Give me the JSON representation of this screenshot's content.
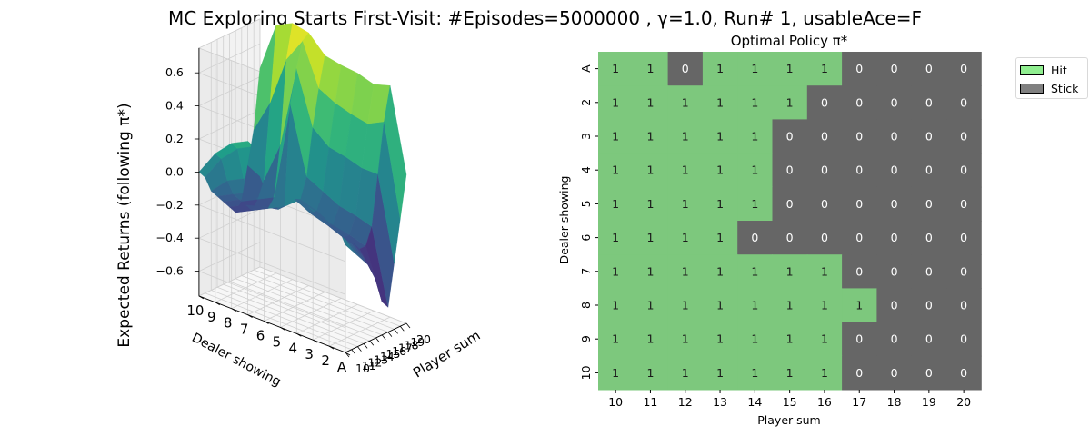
{
  "figure_title": "MC Exploring Starts First-Visit: #Episodes=5000000 , γ=1.0, Run# 1, usableAce=F",
  "chart_data": [
    {
      "type": "surface3d",
      "title": "",
      "xlabel": "Player sum",
      "ylabel": "Dealer showing",
      "zlabel": "Expected Returns (following π*)",
      "x_ticks": [
        "10",
        "11",
        "12",
        "13",
        "14",
        "15",
        "16",
        "17",
        "18",
        "19",
        "20"
      ],
      "y_ticks": [
        "10",
        "9",
        "8",
        "7",
        "6",
        "5",
        "4",
        "3",
        "2",
        "A"
      ],
      "z_ticks": [
        "−0.6",
        "−0.4",
        "−0.2",
        "0.0",
        "0.2",
        "0.4",
        "0.6"
      ],
      "zlim": [
        -0.75,
        0.75
      ],
      "colormap": "viridis",
      "player_sums": [
        10,
        11,
        12,
        13,
        14,
        15,
        16,
        17,
        18,
        19,
        20
      ],
      "dealer_rows": [
        "A",
        "2",
        "3",
        "4",
        "5",
        "6",
        "7",
        "8",
        "9",
        "10"
      ],
      "values": [
        [
          -0.1,
          -0.15,
          -0.2,
          -0.25,
          -0.3,
          -0.4,
          -0.55,
          -0.6,
          -0.35,
          -0.1,
          0.15
        ],
        [
          0.1,
          0.05,
          -0.1,
          -0.15,
          -0.2,
          -0.25,
          -0.25,
          -0.15,
          0.15,
          0.45,
          0.65
        ],
        [
          0.12,
          0.07,
          -0.05,
          -0.1,
          -0.15,
          -0.22,
          -0.22,
          -0.12,
          0.15,
          0.4,
          0.62
        ],
        [
          0.15,
          0.1,
          -0.02,
          -0.08,
          -0.12,
          -0.18,
          -0.2,
          -0.1,
          0.18,
          0.42,
          0.65
        ],
        [
          0.18,
          0.12,
          0.0,
          -0.05,
          -0.08,
          -0.15,
          -0.15,
          -0.05,
          0.2,
          0.45,
          0.66
        ],
        [
          0.2,
          0.15,
          0.05,
          0.0,
          -0.05,
          -0.1,
          -0.12,
          0.0,
          0.28,
          0.5,
          0.68
        ],
        [
          0.3,
          0.25,
          0.05,
          -0.05,
          -0.1,
          -0.2,
          -0.2,
          0.4,
          0.6,
          0.75,
          0.78
        ],
        [
          0.25,
          0.2,
          0.0,
          -0.1,
          -0.15,
          -0.22,
          -0.25,
          -0.2,
          0.1,
          0.6,
          0.8
        ],
        [
          0.15,
          0.1,
          -0.05,
          -0.15,
          -0.2,
          -0.25,
          -0.3,
          -0.25,
          -0.15,
          0.3,
          0.75
        ],
        [
          0.0,
          -0.05,
          -0.15,
          -0.2,
          -0.25,
          -0.3,
          -0.35,
          -0.3,
          -0.1,
          0.1,
          0.45
        ]
      ]
    },
    {
      "type": "heatmap",
      "title": "Optimal Policy π*",
      "xlabel": "Player sum",
      "ylabel": "Dealer showing",
      "x_ticks": [
        "10",
        "11",
        "12",
        "13",
        "14",
        "15",
        "16",
        "17",
        "18",
        "19",
        "20"
      ],
      "y_ticks": [
        "A",
        "2",
        "3",
        "4",
        "5",
        "6",
        "7",
        "8",
        "9",
        "10"
      ],
      "legend_position": "outside-top-right",
      "legend": [
        {
          "label": "Hit",
          "color": "#90ee90"
        },
        {
          "label": "Stick",
          "color": "#808080"
        }
      ],
      "cell_colors": {
        "1": "#7dc87d",
        "0": "#666666"
      },
      "values": [
        [
          1,
          1,
          0,
          1,
          1,
          1,
          1,
          0,
          0,
          0,
          0
        ],
        [
          1,
          1,
          1,
          1,
          1,
          1,
          0,
          0,
          0,
          0,
          0
        ],
        [
          1,
          1,
          1,
          1,
          1,
          0,
          0,
          0,
          0,
          0,
          0
        ],
        [
          1,
          1,
          1,
          1,
          1,
          0,
          0,
          0,
          0,
          0,
          0
        ],
        [
          1,
          1,
          1,
          1,
          1,
          0,
          0,
          0,
          0,
          0,
          0
        ],
        [
          1,
          1,
          1,
          1,
          0,
          0,
          0,
          0,
          0,
          0,
          0
        ],
        [
          1,
          1,
          1,
          1,
          1,
          1,
          1,
          0,
          0,
          0,
          0
        ],
        [
          1,
          1,
          1,
          1,
          1,
          1,
          1,
          1,
          0,
          0,
          0
        ],
        [
          1,
          1,
          1,
          1,
          1,
          1,
          1,
          0,
          0,
          0,
          0
        ],
        [
          1,
          1,
          1,
          1,
          1,
          1,
          1,
          0,
          0,
          0,
          0
        ]
      ]
    }
  ]
}
